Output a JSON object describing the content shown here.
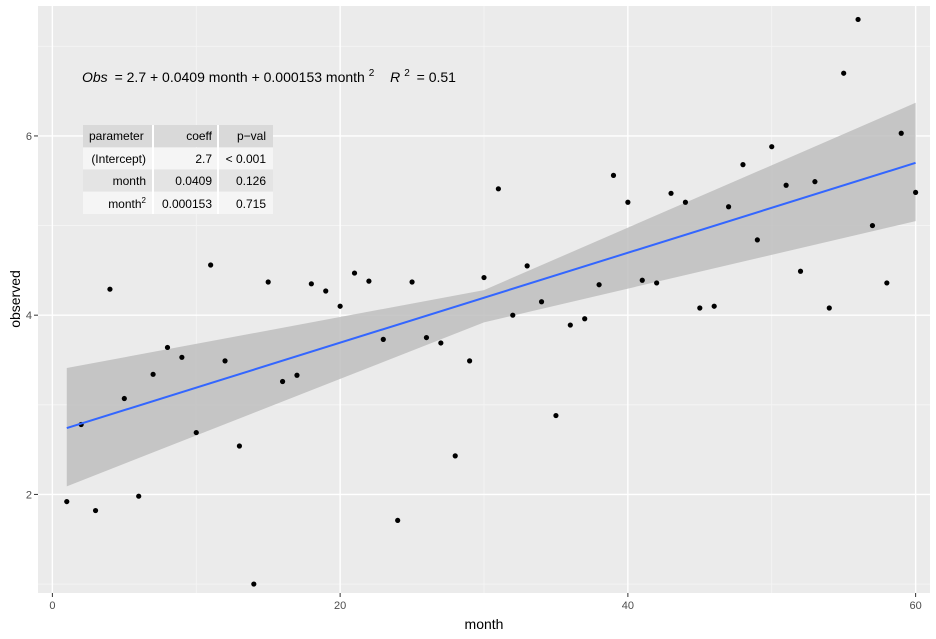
{
  "chart_data": {
    "type": "scatter",
    "xlabel": "month",
    "ylabel": "observed",
    "xlim": [
      -1,
      61
    ],
    "ylim": [
      0.9,
      7.45
    ],
    "x_ticks": [
      0,
      20,
      40,
      60
    ],
    "y_ticks": [
      2,
      4,
      6
    ],
    "grid": true,
    "background": "#ebebeb",
    "point_color": "#000000",
    "line_color": "#3366ff",
    "ribbon_color": "#bebebe",
    "equation": {
      "lhs": "Obs",
      "rhs": "= 2.7 + 0.0409 month + 0.000153 month",
      "exp": "2",
      "r2_label": "R",
      "r2_exp": "2",
      "r2_value": "= 0.51"
    },
    "fit": {
      "x": [
        1,
        30,
        60
      ],
      "y": [
        2.74,
        4.09,
        5.7
      ],
      "lower": [
        2.09,
        3.92,
        5.05
      ],
      "upper": [
        3.41,
        4.28,
        6.37
      ]
    },
    "points": [
      {
        "x": 1,
        "y": 1.92
      },
      {
        "x": 2,
        "y": 2.78
      },
      {
        "x": 3,
        "y": 1.82
      },
      {
        "x": 4,
        "y": 4.29
      },
      {
        "x": 5,
        "y": 3.07
      },
      {
        "x": 6,
        "y": 1.98
      },
      {
        "x": 7,
        "y": 3.34
      },
      {
        "x": 8,
        "y": 3.64
      },
      {
        "x": 9,
        "y": 3.53
      },
      {
        "x": 10,
        "y": 2.69
      },
      {
        "x": 11,
        "y": 4.56
      },
      {
        "x": 12,
        "y": 3.49
      },
      {
        "x": 13,
        "y": 2.54
      },
      {
        "x": 14,
        "y": 1.0
      },
      {
        "x": 15,
        "y": 4.37
      },
      {
        "x": 16,
        "y": 3.26
      },
      {
        "x": 17,
        "y": 3.33
      },
      {
        "x": 18,
        "y": 4.35
      },
      {
        "x": 19,
        "y": 4.27
      },
      {
        "x": 20,
        "y": 4.1
      },
      {
        "x": 21,
        "y": 4.47
      },
      {
        "x": 22,
        "y": 4.38
      },
      {
        "x": 23,
        "y": 3.73
      },
      {
        "x": 24,
        "y": 1.71
      },
      {
        "x": 25,
        "y": 4.37
      },
      {
        "x": 26,
        "y": 3.75
      },
      {
        "x": 27,
        "y": 3.69
      },
      {
        "x": 28,
        "y": 2.43
      },
      {
        "x": 29,
        "y": 3.49
      },
      {
        "x": 30,
        "y": 4.42
      },
      {
        "x": 31,
        "y": 5.41
      },
      {
        "x": 32,
        "y": 4.0
      },
      {
        "x": 33,
        "y": 4.55
      },
      {
        "x": 34,
        "y": 4.15
      },
      {
        "x": 35,
        "y": 2.88
      },
      {
        "x": 36,
        "y": 3.89
      },
      {
        "x": 37,
        "y": 3.96
      },
      {
        "x": 38,
        "y": 4.34
      },
      {
        "x": 39,
        "y": 5.56
      },
      {
        "x": 40,
        "y": 5.26
      },
      {
        "x": 41,
        "y": 4.39
      },
      {
        "x": 42,
        "y": 4.36
      },
      {
        "x": 43,
        "y": 5.36
      },
      {
        "x": 44,
        "y": 5.26
      },
      {
        "x": 45,
        "y": 4.08
      },
      {
        "x": 46,
        "y": 4.1
      },
      {
        "x": 47,
        "y": 5.21
      },
      {
        "x": 48,
        "y": 5.68
      },
      {
        "x": 49,
        "y": 4.84
      },
      {
        "x": 50,
        "y": 5.88
      },
      {
        "x": 51,
        "y": 5.45
      },
      {
        "x": 52,
        "y": 4.49
      },
      {
        "x": 53,
        "y": 5.49
      },
      {
        "x": 54,
        "y": 4.08
      },
      {
        "x": 55,
        "y": 6.7
      },
      {
        "x": 56,
        "y": 7.3
      },
      {
        "x": 57,
        "y": 5.0
      },
      {
        "x": 58,
        "y": 4.36
      },
      {
        "x": 59,
        "y": 6.03
      },
      {
        "x": 60,
        "y": 5.37
      }
    ],
    "table": {
      "headers": [
        "parameter",
        "coeff",
        "p−val"
      ],
      "rows": [
        {
          "parameter": "(Intercept)",
          "param_exp": "",
          "coeff": "2.7",
          "pval": "< 0.001"
        },
        {
          "parameter": "month",
          "param_exp": "",
          "coeff": "0.0409",
          "pval": "0.126"
        },
        {
          "parameter": "month",
          "param_exp": "2",
          "coeff": "0.000153",
          "pval": "0.715"
        }
      ]
    }
  }
}
